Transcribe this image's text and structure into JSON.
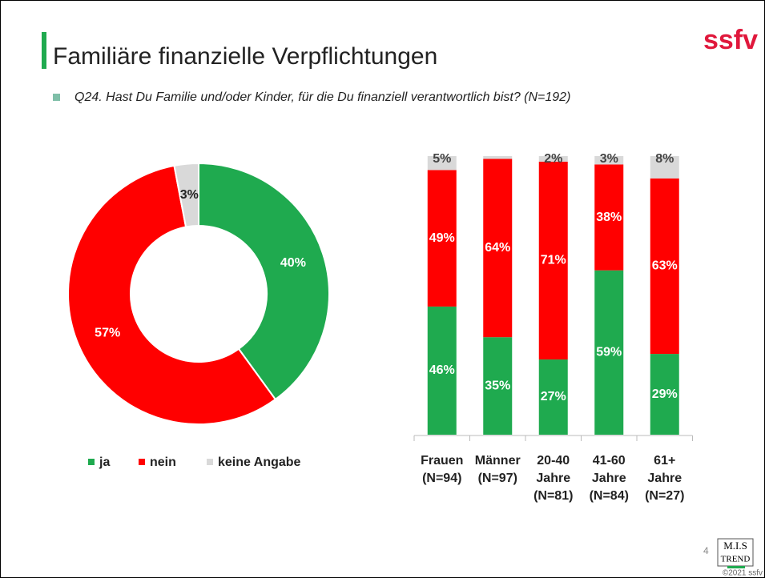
{
  "header": {
    "title": "Familiäre finanzielle Verpflichtungen",
    "subtitle": "Q24. Hast Du Familie und/oder Kinder, für die Du finanziell verantwortlich bist? (N=192)",
    "logo": "ssfv"
  },
  "footer": {
    "page": "4",
    "brand_top": "M.I.S",
    "brand_bottom": "TREND",
    "copyright": "©2021 ssfv"
  },
  "chart_data": [
    {
      "type": "donut",
      "categories": [
        "ja",
        "nein",
        "keine Angabe"
      ],
      "values": [
        40,
        57,
        3
      ],
      "value_labels": [
        "40%",
        "57%",
        "3%"
      ],
      "colors": [
        "#1faa4f",
        "#ff0000",
        "#d9d9d9"
      ],
      "legend": "bottom"
    },
    {
      "type": "stacked_bar",
      "categories": [
        [
          "Frauen",
          "(N=94)"
        ],
        [
          "Männer",
          "(N=97)"
        ],
        [
          "20-40",
          "Jahre",
          "(N=81)"
        ],
        [
          "41-60",
          "Jahre",
          "(N=84)"
        ],
        [
          "61+",
          "Jahre",
          "(N=27)"
        ]
      ],
      "ylim": [
        0,
        100
      ],
      "series": [
        {
          "name": "ja",
          "color": "#1faa4f",
          "values": [
            46,
            35,
            27,
            59,
            29
          ],
          "value_labels": [
            "46%",
            "35%",
            "27%",
            "59%",
            "29%"
          ]
        },
        {
          "name": "nein",
          "color": "#ff0000",
          "values": [
            49,
            64,
            71,
            38,
            63
          ],
          "value_labels": [
            "49%",
            "64%",
            "71%",
            "38%",
            "63%"
          ]
        },
        {
          "name": "keine Angabe",
          "color": "#d9d9d9",
          "values": [
            5,
            1,
            2,
            3,
            8
          ],
          "value_labels": [
            "5%",
            null,
            "2%",
            "3%",
            "8%"
          ]
        }
      ]
    }
  ]
}
